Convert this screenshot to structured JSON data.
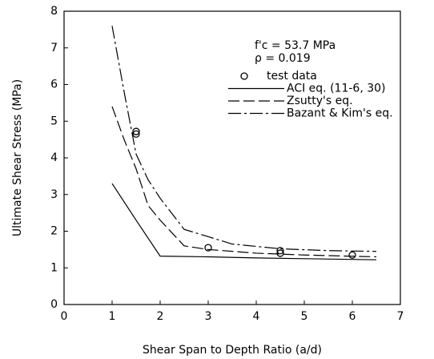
{
  "chart_data": {
    "type": "line",
    "xlabel": "Shear Span to Depth Ratio (a/d)",
    "ylabel": "Ultimate Shear Stress (MPa)",
    "annotations": [
      "f'c = 53.7 MPa",
      "ρ = 0.019"
    ],
    "xlim": [
      0,
      7
    ],
    "xticks": [
      0,
      1,
      2,
      3,
      4,
      5,
      6,
      7
    ],
    "ylim": [
      0,
      8
    ],
    "yticks": [
      0,
      1,
      2,
      3,
      4,
      5,
      6,
      7,
      8
    ],
    "grid": false,
    "legend": "upper right",
    "series": [
      {
        "name": "test data",
        "type": "scatter",
        "marker": "circle",
        "color": "#000000",
        "x": [
          1.5,
          1.5,
          3,
          4.5,
          4.5,
          6
        ],
        "values": [
          4.65,
          4.72,
          1.55,
          1.47,
          1.4,
          1.35
        ]
      },
      {
        "name": "ACI eq. (11-6, 30)",
        "type": "line",
        "style": "solid",
        "color": "#000000",
        "x": [
          1,
          1.5,
          2,
          3,
          4,
          5,
          6.5
        ],
        "values": [
          3.3,
          2.3,
          1.32,
          1.3,
          1.27,
          1.25,
          1.22
        ]
      },
      {
        "name": "Zsutty's eq.",
        "type": "line",
        "style": "dashed",
        "color": "#000000",
        "x": [
          1,
          1.25,
          1.5,
          1.75,
          2,
          2.5,
          3,
          4,
          5,
          6.5
        ],
        "values": [
          5.4,
          4.5,
          3.7,
          2.7,
          2.3,
          1.6,
          1.5,
          1.4,
          1.35,
          1.3
        ]
      },
      {
        "name": "Bazant & Kim's eq.",
        "type": "line",
        "style": "dashdot",
        "color": "#000000",
        "x": [
          1,
          1.25,
          1.5,
          1.75,
          2,
          2.5,
          3,
          3.5,
          4.5,
          5.5,
          6.5
        ],
        "values": [
          7.6,
          5.8,
          4.1,
          3.4,
          2.9,
          2.05,
          1.85,
          1.65,
          1.52,
          1.47,
          1.45
        ]
      }
    ]
  }
}
